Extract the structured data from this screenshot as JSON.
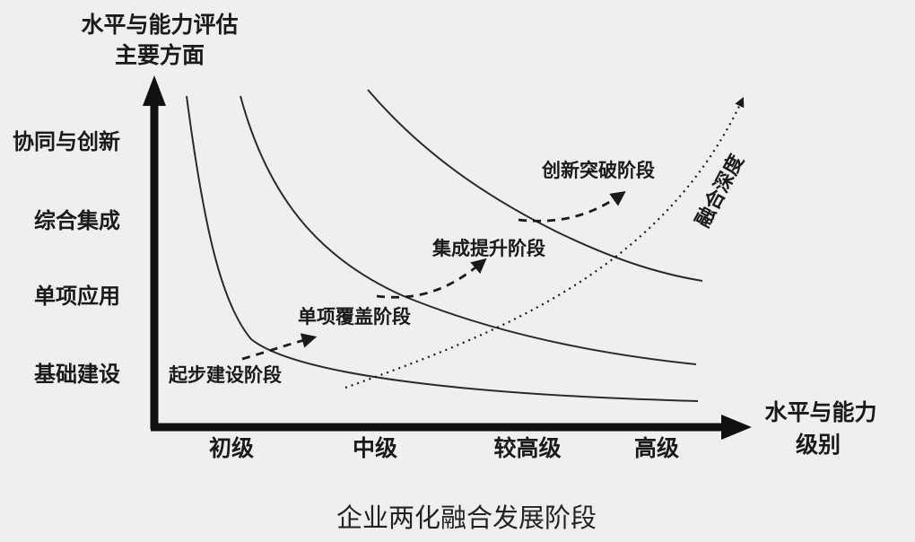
{
  "diagram": {
    "caption": "企业两化融合发展阶段",
    "y_axis": {
      "title_line1": "水平与能力评估",
      "title_line2": "主要方面",
      "levels": [
        "协同与创新",
        "综合集成",
        "单项应用",
        "基础建设"
      ]
    },
    "x_axis": {
      "title_line1": "水平与能力",
      "title_line2": "级别",
      "levels": [
        "初级",
        "中级",
        "较高级",
        "高级"
      ]
    },
    "stages": [
      "起步建设阶段",
      "单项覆盖阶段",
      "集成提升阶段",
      "创新突破阶段"
    ],
    "depth_label": "融合深度"
  },
  "colors": {
    "background": "#efefef",
    "ink": "#1a1a1a"
  }
}
